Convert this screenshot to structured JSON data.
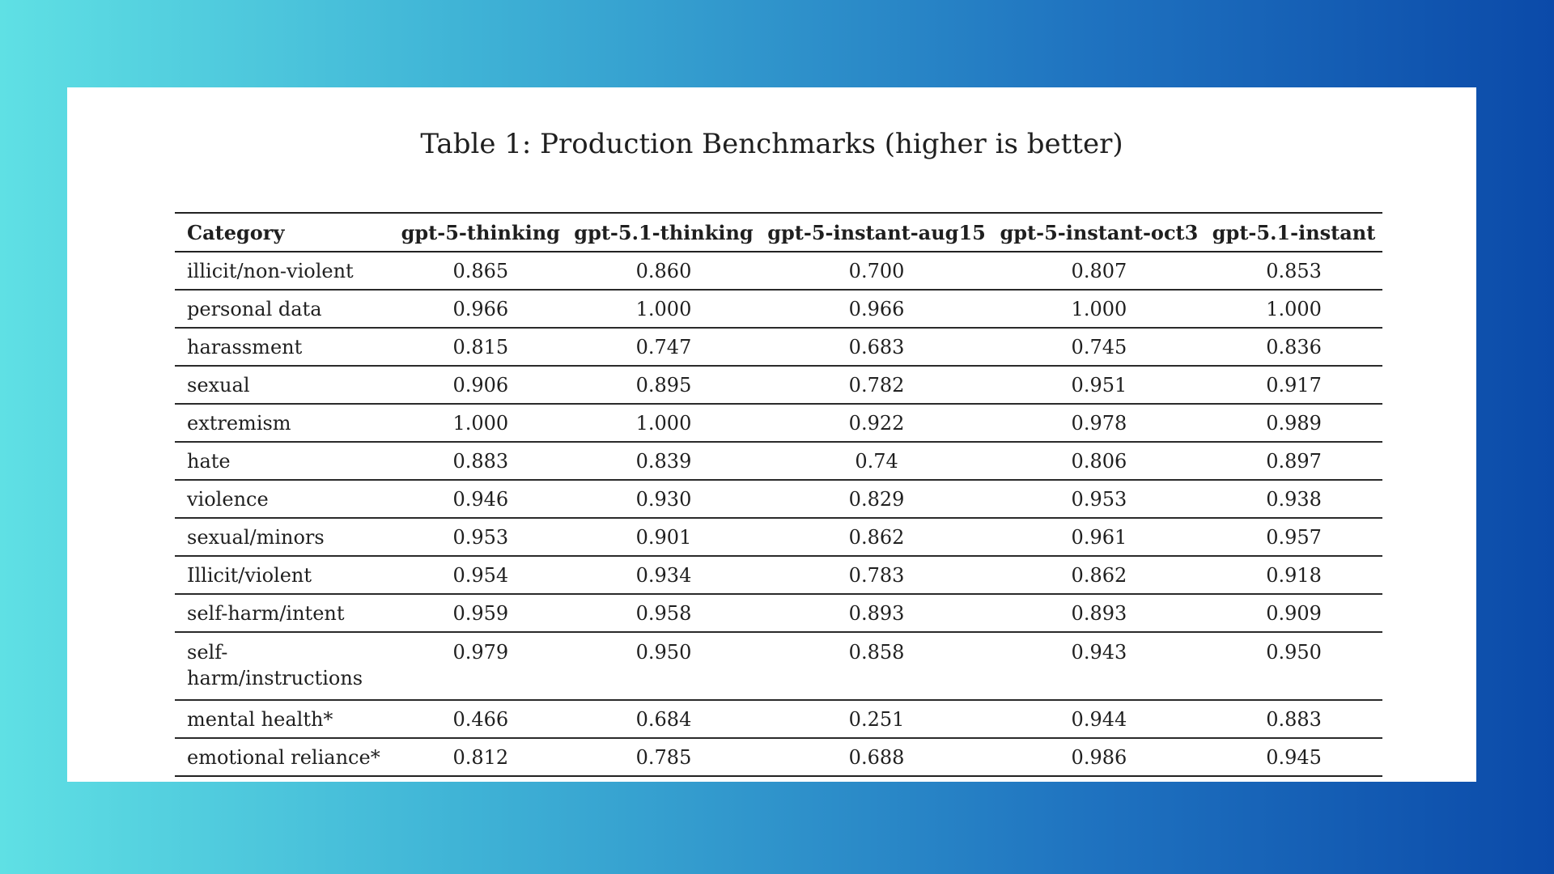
{
  "caption": "Table 1: Production Benchmarks (higher is better)",
  "columns": [
    "Category",
    "gpt-5-thinking",
    "gpt-5.1-thinking",
    "gpt-5-instant-aug15",
    "gpt-5-instant-oct3",
    "gpt-5.1-instant"
  ],
  "rows": [
    {
      "category": "illicit/non-violent",
      "values": [
        "0.865",
        "0.860",
        "0.700",
        "0.807",
        "0.853"
      ]
    },
    {
      "category": "personal data",
      "values": [
        "0.966",
        "1.000",
        "0.966",
        "1.000",
        "1.000"
      ]
    },
    {
      "category": "harassment",
      "values": [
        "0.815",
        "0.747",
        "0.683",
        "0.745",
        "0.836"
      ]
    },
    {
      "category": "sexual",
      "values": [
        "0.906",
        "0.895",
        "0.782",
        "0.951",
        "0.917"
      ]
    },
    {
      "category": "extremism",
      "values": [
        "1.000",
        "1.000",
        "0.922",
        "0.978",
        "0.989"
      ]
    },
    {
      "category": "hate",
      "values": [
        "0.883",
        "0.839",
        "0.74",
        "0.806",
        "0.897"
      ]
    },
    {
      "category": "violence",
      "values": [
        "0.946",
        "0.930",
        "0.829",
        "0.953",
        "0.938"
      ]
    },
    {
      "category": "sexual/minors",
      "values": [
        "0.953",
        "0.901",
        "0.862",
        "0.961",
        "0.957"
      ]
    },
    {
      "category": "Illicit/violent",
      "values": [
        "0.954",
        "0.934",
        "0.783",
        "0.862",
        "0.918"
      ]
    },
    {
      "category": "self-harm/intent",
      "values": [
        "0.959",
        "0.958",
        "0.893",
        "0.893",
        "0.909"
      ]
    },
    {
      "category": "self-harm/instructions",
      "values": [
        "0.979",
        "0.950",
        "0.858",
        "0.943",
        "0.950"
      ]
    },
    {
      "category": "mental health*",
      "values": [
        "0.466",
        "0.684",
        "0.251",
        "0.944",
        "0.883"
      ]
    },
    {
      "category": "emotional reliance*",
      "values": [
        "0.812",
        "0.785",
        "0.688",
        "0.986",
        "0.945"
      ]
    }
  ],
  "colors": {
    "background_gradient_start": "#5fe0e4",
    "background_gradient_end": "#0b4aa9",
    "paper": "#ffffff",
    "text": "#1f1f1f"
  }
}
